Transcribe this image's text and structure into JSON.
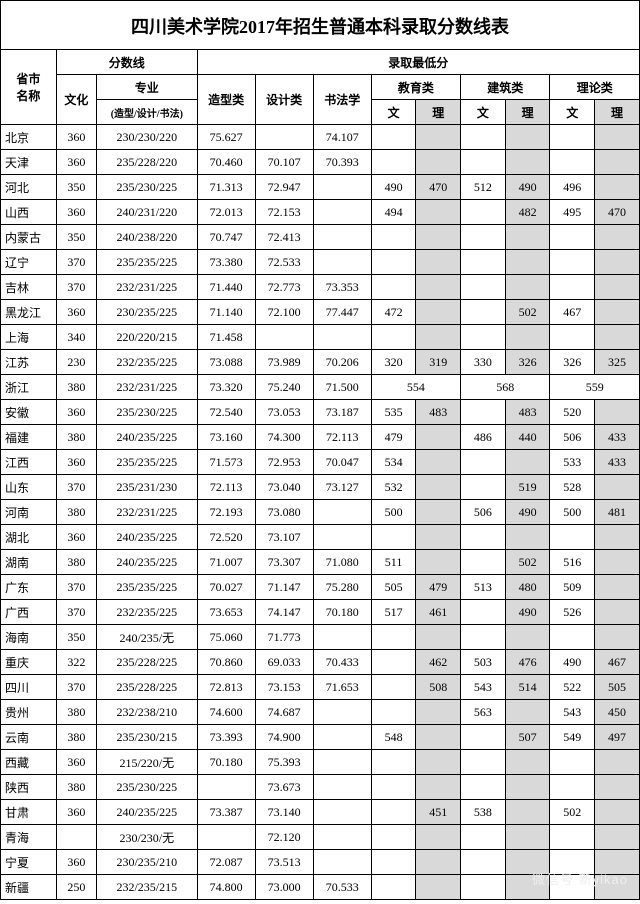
{
  "title": "四川美术学院2017年招生普通本科录取分数线表",
  "headers": {
    "province": "省市\n名称",
    "scoreline": "分数线",
    "admitmin": "录取最低分",
    "culture": "文化",
    "major": "专业",
    "majorSub": "(造型/设计/书法)",
    "modeling": "造型类",
    "design": "设计类",
    "calligraphy": "书法学",
    "education": "教育类",
    "architecture": "建筑类",
    "theory": "理论类",
    "wen": "文",
    "li": "理"
  },
  "colWidths": [
    "50",
    "36",
    "90",
    "52",
    "52",
    "52",
    "40",
    "40",
    "40",
    "40",
    "40",
    "40"
  ],
  "watermark": "微信号 新yikao",
  "rows": [
    {
      "p": "北京",
      "c": "360",
      "m": "230/230/220",
      "mo": "75.627",
      "de": "",
      "ca": "74.107",
      "ew": "",
      "el": "",
      "aw": "",
      "al": "",
      "tw": "",
      "tl": ""
    },
    {
      "p": "天津",
      "c": "360",
      "m": "235/228/220",
      "mo": "70.460",
      "de": "70.107",
      "ca": "70.393",
      "ew": "",
      "el": "",
      "aw": "",
      "al": "",
      "tw": "",
      "tl": ""
    },
    {
      "p": "河北",
      "c": "350",
      "m": "235/230/225",
      "mo": "71.313",
      "de": "72.947",
      "ca": "",
      "ew": "490",
      "el": "470",
      "aw": "512",
      "al": "490",
      "tw": "496",
      "tl": ""
    },
    {
      "p": "山西",
      "c": "360",
      "m": "240/231/220",
      "mo": "72.013",
      "de": "72.153",
      "ca": "",
      "ew": "494",
      "el": "",
      "aw": "",
      "al": "482",
      "tw": "495",
      "tl": "470"
    },
    {
      "p": "内蒙古",
      "c": "350",
      "m": "240/238/220",
      "mo": "70.747",
      "de": "72.413",
      "ca": "",
      "ew": "",
      "el": "",
      "aw": "",
      "al": "",
      "tw": "",
      "tl": ""
    },
    {
      "p": "辽宁",
      "c": "370",
      "m": "235/235/225",
      "mo": "73.380",
      "de": "72.533",
      "ca": "",
      "ew": "",
      "el": "",
      "aw": "",
      "al": "",
      "tw": "",
      "tl": ""
    },
    {
      "p": "吉林",
      "c": "370",
      "m": "232/231/225",
      "mo": "71.440",
      "de": "72.773",
      "ca": "73.353",
      "ew": "",
      "el": "",
      "aw": "",
      "al": "",
      "tw": "",
      "tl": ""
    },
    {
      "p": "黑龙江",
      "c": "360",
      "m": "230/235/225",
      "mo": "71.140",
      "de": "72.100",
      "ca": "77.447",
      "ew": "472",
      "el": "",
      "aw": "",
      "al": "502",
      "tw": "467",
      "tl": ""
    },
    {
      "p": "上海",
      "c": "340",
      "m": "220/220/215",
      "mo": "71.458",
      "de": "",
      "ca": "",
      "ew": "",
      "el": "",
      "aw": "",
      "al": "",
      "tw": "",
      "tl": ""
    },
    {
      "p": "江苏",
      "c": "230",
      "m": "232/235/225",
      "mo": "73.088",
      "de": "73.989",
      "ca": "70.206",
      "ew": "320",
      "el": "319",
      "aw": "330",
      "al": "326",
      "tw": "326",
      "tl": "325"
    },
    {
      "p": "浙江",
      "c": "380",
      "m": "232/231/225",
      "mo": "73.320",
      "de": "75.240",
      "ca": "71.500",
      "merged": true,
      "em": "554",
      "am": "568",
      "tm": "559"
    },
    {
      "p": "安徽",
      "c": "360",
      "m": "235/230/225",
      "mo": "72.540",
      "de": "73.053",
      "ca": "73.187",
      "ew": "535",
      "el": "483",
      "aw": "",
      "al": "483",
      "tw": "520",
      "tl": ""
    },
    {
      "p": "福建",
      "c": "380",
      "m": "240/235/225",
      "mo": "73.160",
      "de": "74.300",
      "ca": "72.113",
      "ew": "479",
      "el": "",
      "aw": "486",
      "al": "440",
      "tw": "506",
      "tl": "433"
    },
    {
      "p": "江西",
      "c": "360",
      "m": "235/235/225",
      "mo": "71.573",
      "de": "72.953",
      "ca": "70.047",
      "ew": "534",
      "el": "",
      "aw": "",
      "al": "",
      "tw": "533",
      "tl": "433"
    },
    {
      "p": "山东",
      "c": "370",
      "m": "235/231/230",
      "mo": "72.113",
      "de": "73.040",
      "ca": "73.127",
      "ew": "532",
      "el": "",
      "aw": "",
      "al": "519",
      "tw": "528",
      "tl": ""
    },
    {
      "p": "河南",
      "c": "380",
      "m": "232/231/225",
      "mo": "72.193",
      "de": "73.080",
      "ca": "",
      "ew": "500",
      "el": "",
      "aw": "506",
      "al": "490",
      "tw": "500",
      "tl": "481"
    },
    {
      "p": "湖北",
      "c": "360",
      "m": "240/235/225",
      "mo": "72.520",
      "de": "73.107",
      "ca": "",
      "ew": "",
      "el": "",
      "aw": "",
      "al": "",
      "tw": "",
      "tl": ""
    },
    {
      "p": "湖南",
      "c": "380",
      "m": "240/235/225",
      "mo": "71.007",
      "de": "73.307",
      "ca": "71.080",
      "ew": "511",
      "el": "",
      "aw": "",
      "al": "502",
      "tw": "516",
      "tl": ""
    },
    {
      "p": "广东",
      "c": "370",
      "m": "235/235/225",
      "mo": "70.027",
      "de": "71.147",
      "ca": "75.280",
      "ew": "505",
      "el": "479",
      "aw": "513",
      "al": "480",
      "tw": "509",
      "tl": ""
    },
    {
      "p": "广西",
      "c": "370",
      "m": "232/235/225",
      "mo": "73.653",
      "de": "74.147",
      "ca": "70.180",
      "ew": "517",
      "el": "461",
      "aw": "",
      "al": "490",
      "tw": "526",
      "tl": ""
    },
    {
      "p": "海南",
      "c": "350",
      "m": "240/235/无",
      "mo": "75.060",
      "de": "71.773",
      "ca": "",
      "ew": "",
      "el": "",
      "aw": "",
      "al": "",
      "tw": "",
      "tl": ""
    },
    {
      "p": "重庆",
      "c": "322",
      "m": "235/228/225",
      "mo": "70.860",
      "de": "69.033",
      "ca": "70.433",
      "ew": "",
      "el": "462",
      "aw": "503",
      "al": "476",
      "tw": "490",
      "tl": "467"
    },
    {
      "p": "四川",
      "c": "370",
      "m": "235/228/225",
      "mo": "72.813",
      "de": "73.153",
      "ca": "71.653",
      "ew": "",
      "el": "508",
      "aw": "543",
      "al": "514",
      "tw": "522",
      "tl": "505"
    },
    {
      "p": "贵州",
      "c": "380",
      "m": "232/238/210",
      "mo": "74.600",
      "de": "74.687",
      "ca": "",
      "ew": "",
      "el": "",
      "aw": "563",
      "al": "",
      "tw": "543",
      "tl": "450"
    },
    {
      "p": "云南",
      "c": "380",
      "m": "235/230/215",
      "mo": "73.393",
      "de": "74.900",
      "ca": "",
      "ew": "548",
      "el": "",
      "aw": "",
      "al": "507",
      "tw": "549",
      "tl": "497"
    },
    {
      "p": "西藏",
      "c": "360",
      "m": "215/220/无",
      "mo": "70.180",
      "de": "75.393",
      "ca": "",
      "ew": "",
      "el": "",
      "aw": "",
      "al": "",
      "tw": "",
      "tl": ""
    },
    {
      "p": "陕西",
      "c": "380",
      "m": "235/230/225",
      "mo": "",
      "de": "73.673",
      "ca": "",
      "ew": "",
      "el": "",
      "aw": "",
      "al": "",
      "tw": "",
      "tl": ""
    },
    {
      "p": "甘肃",
      "c": "360",
      "m": "240/235/225",
      "mo": "73.387",
      "de": "73.140",
      "ca": "",
      "ew": "",
      "el": "451",
      "aw": "538",
      "al": "",
      "tw": "502",
      "tl": ""
    },
    {
      "p": "青海",
      "c": "",
      "m": "230/230/无",
      "mo": "",
      "de": "72.120",
      "ca": "",
      "ew": "",
      "el": "",
      "aw": "",
      "al": "",
      "tw": "",
      "tl": ""
    },
    {
      "p": "宁夏",
      "c": "360",
      "m": "230/235/210",
      "mo": "72.087",
      "de": "73.513",
      "ca": "",
      "ew": "",
      "el": "",
      "aw": "",
      "al": "",
      "tw": "",
      "tl": ""
    },
    {
      "p": "新疆",
      "c": "250",
      "m": "232/235/215",
      "mo": "74.800",
      "de": "73.000",
      "ca": "70.533",
      "ew": "",
      "el": "",
      "aw": "",
      "al": "",
      "tw": "",
      "tl": ""
    }
  ]
}
